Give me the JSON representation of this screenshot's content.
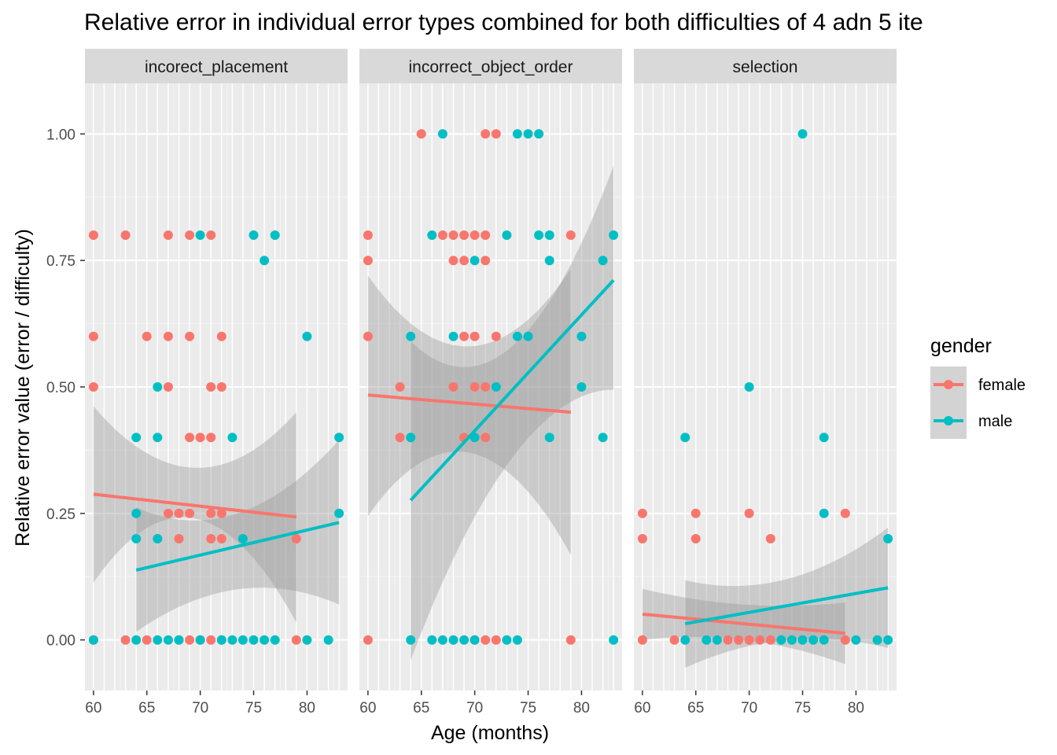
{
  "chart_data": {
    "type": "scatter",
    "title": "Relative error in individual error types combined for both difficulties of 4 adn 5 ite",
    "xlabel": "Age (months)",
    "ylabel": "Relative error value (error / difficulty)",
    "xlim": [
      59.2,
      83.8
    ],
    "ylim": [
      -0.1,
      1.1
    ],
    "x_ticks": [
      60,
      65,
      70,
      75,
      80
    ],
    "y_ticks": [
      0,
      0.25,
      0.5,
      0.75,
      1.0
    ],
    "y_tick_labels": [
      "0.00",
      "0.25",
      "0.50",
      "0.75",
      "1.00"
    ],
    "grid": true,
    "legend": {
      "title": "gender",
      "position": "right",
      "entries": [
        {
          "name": "female",
          "color": "#F8766D"
        },
        {
          "name": "male",
          "color": "#00BFC4"
        }
      ]
    },
    "panels": [
      {
        "label": "incorect_placement",
        "series": [
          {
            "name": "female",
            "color": "#F8766D",
            "x": [
              60,
              63,
              67,
              69,
              71,
              60,
              65,
              67,
              69,
              72,
              60,
              67,
              71,
              72,
              69,
              70,
              71,
              67,
              68,
              69,
              71,
              72,
              68,
              71,
              72,
              79,
              60,
              63,
              65,
              68,
              69,
              70,
              71,
              72,
              79
            ],
            "y": [
              0.8,
              0.8,
              0.8,
              0.8,
              0.8,
              0.6,
              0.6,
              0.6,
              0.6,
              0.6,
              0.5,
              0.5,
              0.5,
              0.5,
              0.4,
              0.4,
              0.4,
              0.25,
              0.25,
              0.25,
              0.25,
              0.25,
              0.2,
              0.2,
              0.2,
              0.2,
              0,
              0,
              0,
              0,
              0,
              0,
              0,
              0,
              0
            ]
          },
          {
            "name": "male",
            "color": "#00BFC4",
            "x": [
              70,
              75,
              77,
              76,
              80,
              66,
              64,
              66,
              73,
              83,
              64,
              83,
              64,
              66,
              74,
              60,
              64,
              66,
              67,
              68,
              70,
              72,
              73,
              74,
              75,
              76,
              77,
              80,
              82
            ],
            "y": [
              0.8,
              0.8,
              0.8,
              0.75,
              0.6,
              0.5,
              0.4,
              0.4,
              0.4,
              0.4,
              0.25,
              0.25,
              0.2,
              0.2,
              0.2,
              0,
              0,
              0,
              0,
              0,
              0,
              0,
              0,
              0,
              0,
              0,
              0,
              0,
              0
            ]
          }
        ],
        "fits": [
          {
            "name": "female",
            "x": [
              60,
              79
            ],
            "y": [
              0.288,
              0.243
            ],
            "ci_low": [
              0.113,
              0.034
            ],
            "ci_mid_x": 69.5,
            "ci_mid": [
              0.24,
              0.34
            ],
            "ci_high": [
              0.462,
              0.45
            ]
          },
          {
            "name": "male",
            "x": [
              64,
              83
            ],
            "y": [
              0.138,
              0.232
            ],
            "ci_low": [
              0.016,
              0.07
            ],
            "ci_mid_x": 72,
            "ci_mid": [
              0.1,
              0.25
            ],
            "ci_high": [
              0.262,
              0.395
            ]
          }
        ]
      },
      {
        "label": "incorrect_object_order",
        "series": [
          {
            "name": "female",
            "color": "#F8766D",
            "x": [
              65,
              71,
              72,
              60,
              67,
              68,
              69,
              70,
              71,
              79,
              60,
              68,
              69,
              71,
              60,
              69,
              70,
              72,
              63,
              68,
              70,
              71,
              63,
              69,
              71,
              60,
              70,
              71,
              72,
              79
            ],
            "y": [
              1,
              1,
              1,
              0.8,
              0.8,
              0.8,
              0.8,
              0.8,
              0.8,
              0.8,
              0.75,
              0.75,
              0.75,
              0.75,
              0.6,
              0.6,
              0.6,
              0.6,
              0.5,
              0.5,
              0.5,
              0.5,
              0.4,
              0.4,
              0.4,
              0,
              0,
              0,
              0,
              0
            ]
          },
          {
            "name": "male",
            "color": "#00BFC4",
            "x": [
              67,
              74,
              75,
              76,
              66,
              73,
              76,
              77,
              83,
              70,
              77,
              82,
              64,
              68,
              74,
              75,
              80,
              72,
              80,
              64,
              70,
              77,
              82,
              64,
              66,
              67,
              68,
              69,
              70,
              73,
              74,
              83
            ],
            "y": [
              1,
              1,
              1,
              1,
              0.8,
              0.8,
              0.8,
              0.8,
              0.8,
              0.75,
              0.75,
              0.75,
              0.6,
              0.6,
              0.6,
              0.6,
              0.6,
              0.5,
              0.5,
              0.4,
              0.4,
              0.4,
              0.4,
              0,
              0,
              0,
              0,
              0,
              0,
              0,
              0,
              0
            ]
          }
        ],
        "fits": [
          {
            "name": "female",
            "x": [
              60,
              79
            ],
            "y": [
              0.484,
              0.45
            ],
            "ci_low": [
              0.245,
              0.168
            ],
            "ci_mid_x": 69.5,
            "ci_mid": [
              0.37,
              0.58
            ],
            "ci_high": [
              0.72,
              0.733
            ]
          },
          {
            "name": "male",
            "x": [
              64,
              83
            ],
            "y": [
              0.276,
              0.711
            ],
            "ci_low": [
              -0.04,
              0.495
            ],
            "ci_mid_x": 71,
            "ci_mid": [
              0.36,
              0.58
            ],
            "ci_high": [
              0.59,
              0.937
            ]
          }
        ]
      },
      {
        "label": "selection",
        "series": [
          {
            "name": "female",
            "color": "#F8766D",
            "x": [
              60,
              65,
              70,
              79,
              60,
              65,
              72,
              60,
              63,
              68,
              69,
              70,
              71,
              72,
              79
            ],
            "y": [
              0.25,
              0.25,
              0.25,
              0.25,
              0.2,
              0.2,
              0.2,
              0,
              0,
              0,
              0,
              0,
              0,
              0,
              0
            ]
          },
          {
            "name": "male",
            "color": "#00BFC4",
            "x": [
              75,
              70,
              64,
              77,
              77,
              83,
              64,
              66,
              67,
              73,
              74,
              75,
              76,
              77,
              80,
              82,
              83
            ],
            "y": [
              1,
              0.5,
              0.4,
              0.4,
              0.25,
              0.2,
              0,
              0,
              0,
              0,
              0,
              0,
              0,
              0,
              0,
              0,
              0
            ]
          }
        ],
        "fits": [
          {
            "name": "female",
            "x": [
              60,
              79
            ],
            "y": [
              0.051,
              0.013
            ],
            "ci_low": [
              0.0,
              -0.048
            ],
            "ci_mid_x": 69.5,
            "ci_mid": [
              0.0,
              0.07
            ],
            "ci_high": [
              0.101,
              0.074
            ]
          },
          {
            "name": "male",
            "x": [
              64,
              83
            ],
            "y": [
              0.032,
              0.103
            ],
            "ci_low": [
              -0.055,
              -0.016
            ],
            "ci_mid_x": 72,
            "ci_mid": [
              0.0,
              0.12
            ],
            "ci_high": [
              0.118,
              0.222
            ]
          }
        ]
      }
    ]
  }
}
